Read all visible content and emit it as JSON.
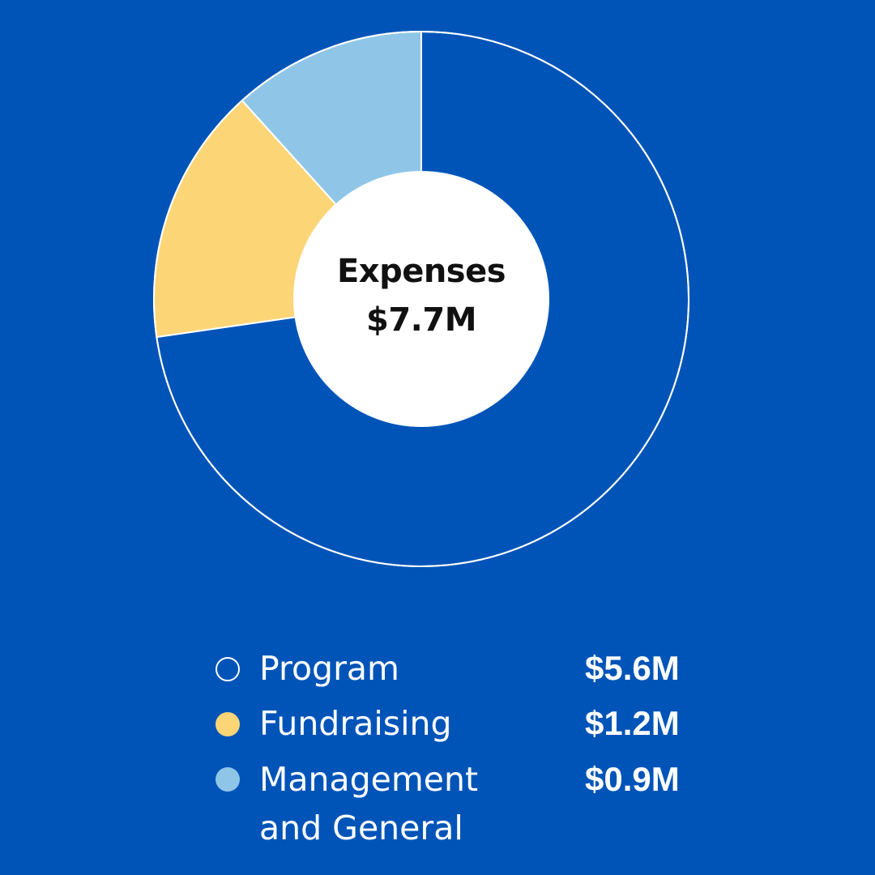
{
  "chart_data": {
    "type": "pie",
    "center_label": {
      "title": "Expenses",
      "total": "$7.7M"
    },
    "slices": [
      {
        "label": "Program",
        "value": 5.6,
        "display_value": "$5.6M",
        "color": "#0054b8",
        "legend_dot": "outline"
      },
      {
        "label": "Fundraising",
        "value": 1.2,
        "display_value": "$1.2M",
        "color": "#fcd577",
        "legend_dot": "filled"
      },
      {
        "label": "Management\nand General",
        "value": 0.9,
        "display_value": "$0.9M",
        "color": "#8fc6e8",
        "legend_dot": "filled"
      }
    ]
  },
  "colors": {
    "background": "#0054b8",
    "center": "#ffffff",
    "outline": "#ffffff"
  }
}
